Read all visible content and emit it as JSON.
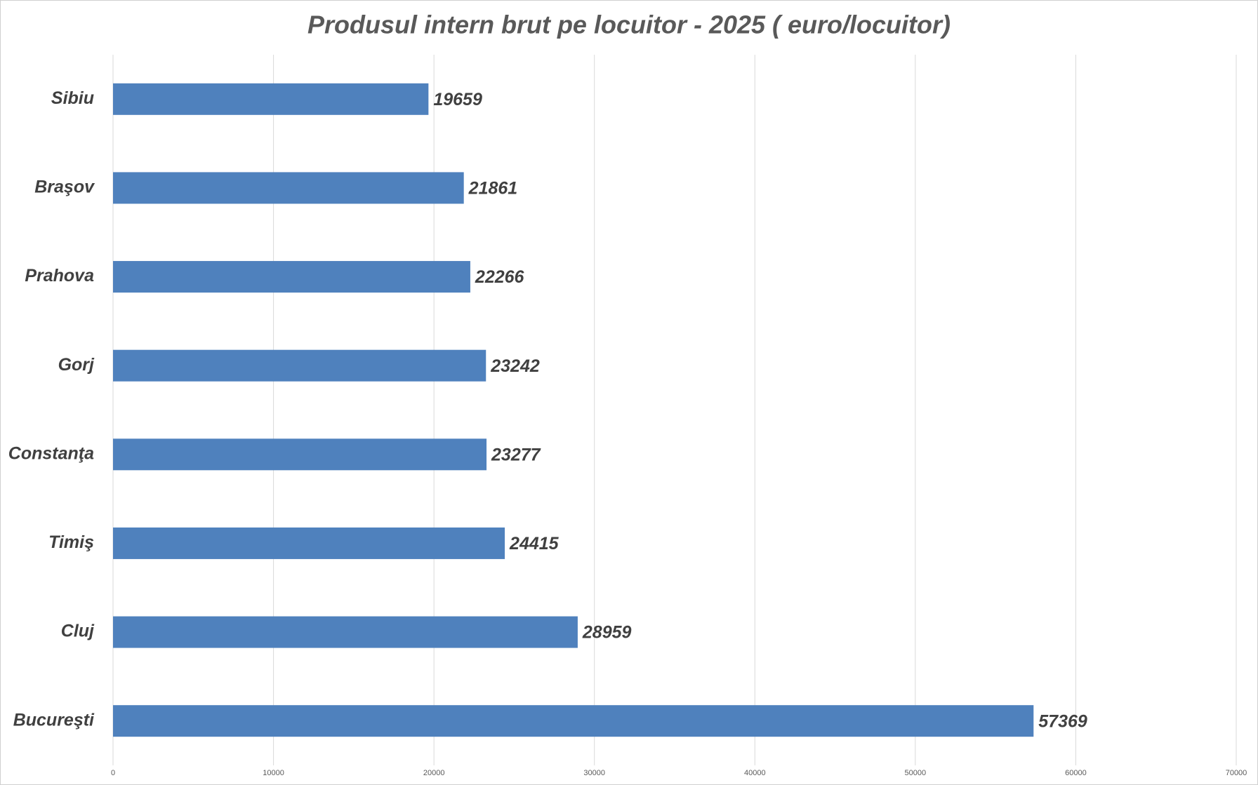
{
  "chart_data": {
    "type": "bar",
    "orientation": "horizontal",
    "title": "Produsul intern brut pe locuitor - 2025 ( euro/locuitor)",
    "categories": [
      "Sibiu",
      "Braşov",
      "Prahova",
      "Gorj",
      "Constanţa",
      "Timiş",
      "Cluj",
      "Bucureşti"
    ],
    "values": [
      19659,
      21861,
      22266,
      23242,
      23277,
      24415,
      28959,
      57369
    ],
    "color": "#4f81bd",
    "xlim": [
      0,
      70000
    ],
    "xticks": [
      0,
      10000,
      20000,
      30000,
      40000,
      50000,
      60000,
      70000
    ],
    "grid": true
  }
}
